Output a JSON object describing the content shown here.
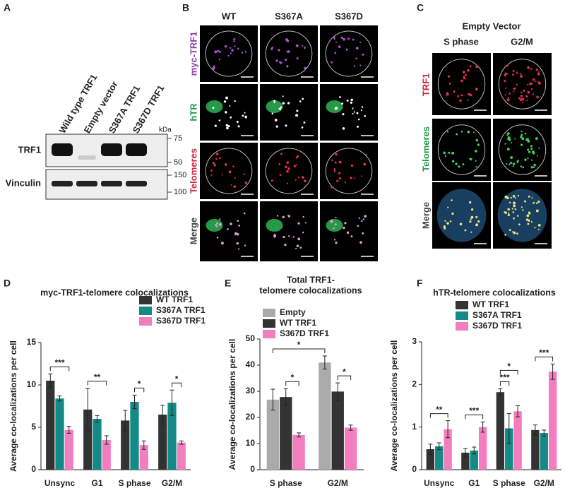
{
  "panel_labels": [
    "A",
    "B",
    "C",
    "D",
    "E",
    "F"
  ],
  "western_blot": {
    "lanes": [
      "Wild type TRF1",
      "Empty vector",
      "S367A TRF1",
      "S367D TRF1"
    ],
    "rows": [
      "TRF1",
      "Vinculin"
    ],
    "kda_label": "kDa",
    "kda_markers": [
      "75",
      "50",
      "150",
      "100"
    ]
  },
  "microscopy_b": {
    "columns": [
      "WT",
      "S367A",
      "S367D"
    ],
    "rows": [
      "myc-TRF1",
      "hTR",
      "Telomeres",
      "Merge"
    ]
  },
  "microscopy_c": {
    "title": "Empty Vector",
    "columns": [
      "S phase",
      "G2/M"
    ],
    "rows": [
      "TRF1",
      "Telomeres",
      "Merge"
    ]
  },
  "chart_data": [
    {
      "type": "bar",
      "title": [
        "myc-TRF1-telomere colocalizations"
      ],
      "y_label": "Average co-localizations per cell",
      "categories": [
        "Unsync",
        "G1",
        "S phase",
        "G2/M"
      ],
      "series": [
        {
          "name": "WT TRF1",
          "color": "#333333",
          "values": [
            10.5,
            7.1,
            5.8,
            6.5
          ],
          "errors": [
            0.8,
            2.5,
            1.2,
            1.1
          ]
        },
        {
          "name": "S367A TRF1",
          "color": "#138a86",
          "values": [
            8.4,
            6.0,
            8.0,
            7.9
          ],
          "errors": [
            0.3,
            0.4,
            0.8,
            1.5
          ]
        },
        {
          "name": "S367D TRF1",
          "color": "#f27ec0",
          "values": [
            4.7,
            3.5,
            2.9,
            3.2
          ],
          "errors": [
            0.4,
            0.5,
            0.5,
            0.2
          ]
        }
      ],
      "ylim": [
        0,
        15
      ],
      "yticks": [
        0,
        5,
        10,
        15
      ],
      "annotations": [
        "***",
        "**",
        "*",
        "*"
      ]
    },
    {
      "type": "bar",
      "title": [
        "Total TRF1-",
        "telomere colocalizations"
      ],
      "y_label": "Average co-localizations per cell",
      "categories": [
        "S phase",
        "G2/M"
      ],
      "series": [
        {
          "name": "Empty",
          "color": "#aaaaaa",
          "values": [
            26.8,
            41.0
          ],
          "errors": [
            4.0,
            2.5
          ]
        },
        {
          "name": "WT TRF1",
          "color": "#333333",
          "values": [
            27.8,
            29.9
          ],
          "errors": [
            3.2,
            3.3
          ]
        },
        {
          "name": "S367D TRF1",
          "color": "#f27ec0",
          "values": [
            13.3,
            16.1
          ],
          "errors": [
            0.8,
            1.0
          ]
        }
      ],
      "ylim": [
        0,
        50
      ],
      "yticks": [
        0,
        10,
        20,
        30,
        40,
        50
      ],
      "annotations": [
        "*",
        "*",
        "*"
      ]
    },
    {
      "type": "bar",
      "title": [
        "hTR-telomere colocalizations"
      ],
      "y_label": "Average co-localizations per cell",
      "categories": [
        "Unsync",
        "G1",
        "S phase",
        "G2/M"
      ],
      "series": [
        {
          "name": "WT TRF1",
          "color": "#333333",
          "values": [
            0.48,
            0.4,
            1.82,
            0.93
          ],
          "errors": [
            0.12,
            0.1,
            0.08,
            0.12
          ]
        },
        {
          "name": "S367A TRF1",
          "color": "#138a86",
          "values": [
            0.55,
            0.45,
            0.97,
            0.86
          ],
          "errors": [
            0.08,
            0.08,
            0.35,
            0.07
          ]
        },
        {
          "name": "S367D TRF1",
          "color": "#f27ec0",
          "values": [
            0.95,
            1.0,
            1.37,
            2.3
          ],
          "errors": [
            0.2,
            0.12,
            0.13,
            0.18
          ]
        }
      ],
      "ylim": [
        0,
        3
      ],
      "yticks": [
        0,
        1,
        2,
        3
      ],
      "annotations": [
        "**",
        "***",
        "***",
        "*",
        "***"
      ]
    }
  ]
}
